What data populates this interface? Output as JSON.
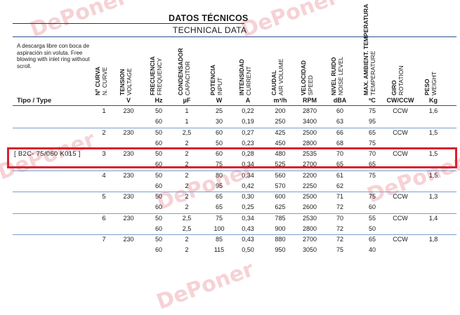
{
  "header": {
    "title": "DATOS TÉCNICOS",
    "subtitle": "TECHNICAL DATA"
  },
  "note": "A descarga libre con boca de aspiración sin voluta. Free blowing with inlet ring without scroll.",
  "columns": [
    {
      "es": "Nº CURVA",
      "en": "N. CURVE",
      "unit": ""
    },
    {
      "es": "TENSION",
      "en": "VOLTAGE",
      "unit": "V"
    },
    {
      "es": "FRECUENCIA",
      "en": "FREQUENCY",
      "unit": "Hz"
    },
    {
      "es": "CONDENSADOR",
      "en": "CAPACITOR",
      "unit": "µF"
    },
    {
      "es": "POTENCIA",
      "en": "INPUT",
      "unit": "W"
    },
    {
      "es": "INTENSIDAD",
      "en": "CURRENT",
      "unit": "A"
    },
    {
      "es": "CAUDAL",
      "en": "AIR VOLUME",
      "unit": "m³/h"
    },
    {
      "es": "VELOCIDAD",
      "en": "SPEED",
      "unit": "RPM"
    },
    {
      "es": "NIVEL RUIDO",
      "en": "NOISE LEVEL",
      "unit": "dBA"
    },
    {
      "es": "MAX. AMBIENT. TEMPERATURA",
      "en": "TEMPERATURE",
      "unit": "ºC"
    },
    {
      "es": "GIRO",
      "en": "ROTATION",
      "unit": "CW/CCW"
    },
    {
      "es": "PESO",
      "en": "WEIGHT",
      "unit": "Kg"
    }
  ],
  "tipo_label": "Tipo / Type",
  "groups": [
    {
      "type": "",
      "curve": "1",
      "voltage": "230",
      "rotation": "CCW",
      "weight": "1,6",
      "rows": [
        [
          "50",
          "1",
          "25",
          "0,22",
          "200",
          "2870",
          "60",
          "75"
        ],
        [
          "60",
          "1",
          "30",
          "0,19",
          "250",
          "3400",
          "63",
          "95"
        ]
      ]
    },
    {
      "type": "",
      "curve": "2",
      "voltage": "230",
      "rotation": "CCW",
      "weight": "1,5",
      "rows": [
        [
          "50",
          "2,5",
          "60",
          "0,27",
          "425",
          "2500",
          "66",
          "65"
        ],
        [
          "60",
          "2",
          "50",
          "0,23",
          "450",
          "2800",
          "68",
          "75"
        ]
      ]
    },
    {
      "type": "[ B2C- 75/060 K015 ]",
      "curve": "3",
      "voltage": "230",
      "rotation": "CCW",
      "weight": "1,5",
      "rows": [
        [
          "50",
          "2",
          "60",
          "0,28",
          "480",
          "2535",
          "70",
          "70"
        ],
        [
          "60",
          "2",
          "75",
          "0,34",
          "525",
          "2700",
          "65",
          "65"
        ]
      ]
    },
    {
      "type": "",
      "curve": "4",
      "voltage": "230",
      "rotation": "",
      "weight": "1,5",
      "rows": [
        [
          "50",
          "2",
          "80",
          "0,34",
          "560",
          "2200",
          "61",
          "75"
        ],
        [
          "60",
          "2",
          "95",
          "0,42",
          "570",
          "2250",
          "62",
          ""
        ]
      ]
    },
    {
      "type": "",
      "curve": "5",
      "voltage": "230",
      "rotation": "CCW",
      "weight": "1,3",
      "rows": [
        [
          "50",
          "2",
          "65",
          "0,30",
          "600",
          "2500",
          "71",
          "75"
        ],
        [
          "60",
          "2",
          "65",
          "0,25",
          "625",
          "2600",
          "72",
          "60"
        ]
      ]
    },
    {
      "type": "",
      "curve": "6",
      "voltage": "230",
      "rotation": "CCW",
      "weight": "1,4",
      "rows": [
        [
          "50",
          "2,5",
          "75",
          "0,34",
          "785",
          "2530",
          "70",
          "55"
        ],
        [
          "60",
          "2,5",
          "100",
          "0,43",
          "900",
          "2800",
          "72",
          "50"
        ]
      ]
    },
    {
      "type": "",
      "curve": "7",
      "voltage": "230",
      "rotation": "CCW",
      "weight": "1,8",
      "rows": [
        [
          "50",
          "2",
          "85",
          "0,43",
          "880",
          "2700",
          "72",
          "65"
        ],
        [
          "60",
          "2",
          "115",
          "0,50",
          "950",
          "3050",
          "75",
          "40"
        ]
      ]
    }
  ],
  "watermark": "DePoner",
  "colors": {
    "highlight": "#d9232e",
    "rule": "#2d4f8a",
    "watermark": "#f3c4c8"
  }
}
